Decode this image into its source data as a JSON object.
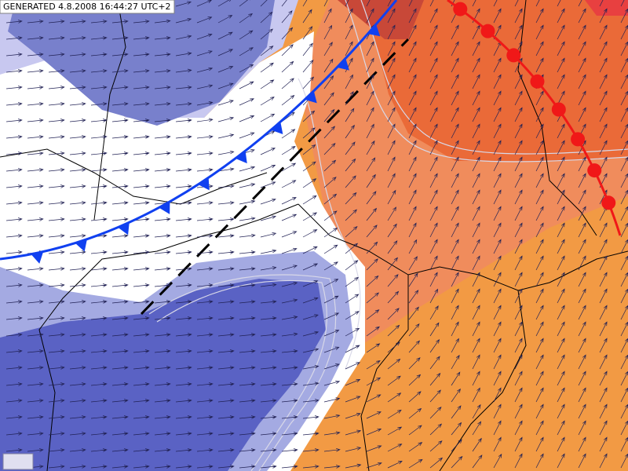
{
  "header": {
    "generated": "GENERATED 4.8.2008 16:44:27 UTC+2"
  }
}
